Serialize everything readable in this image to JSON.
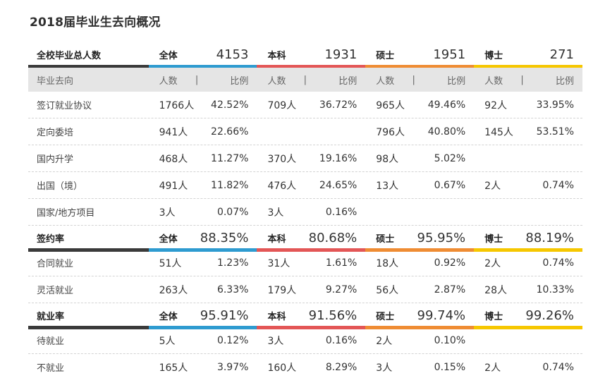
{
  "title": "2018届毕业生去向概况",
  "colors": {
    "dark": "#3a3a3a",
    "all": "#2e9bd0",
    "bachelor": "#e35656",
    "master": "#ef8c33",
    "doctor": "#f6c700"
  },
  "header": {
    "label": "全校毕业总人数",
    "groups": [
      {
        "label": "全体",
        "value": "4153"
      },
      {
        "label": "本科",
        "value": "1931"
      },
      {
        "label": "硕士",
        "value": "1951"
      },
      {
        "label": "博士",
        "value": "271"
      }
    ]
  },
  "subheader": {
    "label": "毕业去向",
    "count": "人数",
    "sep": "|",
    "ratio": "比例"
  },
  "rows1": [
    {
      "label": "签订就业协议",
      "cells": [
        [
          "1766人",
          "42.52%"
        ],
        [
          "709人",
          "36.72%"
        ],
        [
          "965人",
          "49.46%"
        ],
        [
          "92人",
          "33.95%"
        ]
      ]
    },
    {
      "label": "定向委培",
      "cells": [
        [
          "941人",
          "22.66%"
        ],
        [
          "",
          ""
        ],
        [
          "796人",
          "40.80%"
        ],
        [
          "145人",
          "53.51%"
        ]
      ]
    },
    {
      "label": "国内升学",
      "cells": [
        [
          "468人",
          "11.27%"
        ],
        [
          "370人",
          "19.16%"
        ],
        [
          "98人",
          "5.02%"
        ],
        [
          "",
          ""
        ]
      ]
    },
    {
      "label": "出国（境）",
      "cells": [
        [
          "491人",
          "11.82%"
        ],
        [
          "476人",
          "24.65%"
        ],
        [
          "13人",
          "0.67%"
        ],
        [
          "2人",
          "0.74%"
        ]
      ]
    },
    {
      "label": "国家/地方项目",
      "cells": [
        [
          "3人",
          "0.07%"
        ],
        [
          "3人",
          "0.16%"
        ],
        [
          "",
          ""
        ],
        [
          "",
          ""
        ]
      ]
    }
  ],
  "sign": {
    "label": "签约率",
    "groups": [
      {
        "label": "全体",
        "value": "88.35%"
      },
      {
        "label": "本科",
        "value": "80.68%"
      },
      {
        "label": "硕士",
        "value": "95.95%"
      },
      {
        "label": "博士",
        "value": "88.19%"
      }
    ]
  },
  "rows2": [
    {
      "label": "合同就业",
      "cells": [
        [
          "51人",
          "1.23%"
        ],
        [
          "31人",
          "1.61%"
        ],
        [
          "18人",
          "0.92%"
        ],
        [
          "2人",
          "0.74%"
        ]
      ]
    },
    {
      "label": "灵活就业",
      "cells": [
        [
          "263人",
          "6.33%"
        ],
        [
          "179人",
          "9.27%"
        ],
        [
          "56人",
          "2.87%"
        ],
        [
          "28人",
          "10.33%"
        ]
      ]
    }
  ],
  "employ": {
    "label": "就业率",
    "groups": [
      {
        "label": "全体",
        "value": "95.91%"
      },
      {
        "label": "本科",
        "value": "91.56%"
      },
      {
        "label": "硕士",
        "value": "99.74%"
      },
      {
        "label": "博士",
        "value": "99.26%"
      }
    ]
  },
  "rows3": [
    {
      "label": "待就业",
      "cells": [
        [
          "5人",
          "0.12%"
        ],
        [
          "3人",
          "0.16%"
        ],
        [
          "2人",
          "0.10%"
        ],
        [
          "",
          ""
        ]
      ]
    },
    {
      "label": "不就业",
      "cells": [
        [
          "165人",
          "3.97%"
        ],
        [
          "160人",
          "8.29%"
        ],
        [
          "3人",
          "0.15%"
        ],
        [
          "2人",
          "0.74%"
        ]
      ]
    }
  ]
}
